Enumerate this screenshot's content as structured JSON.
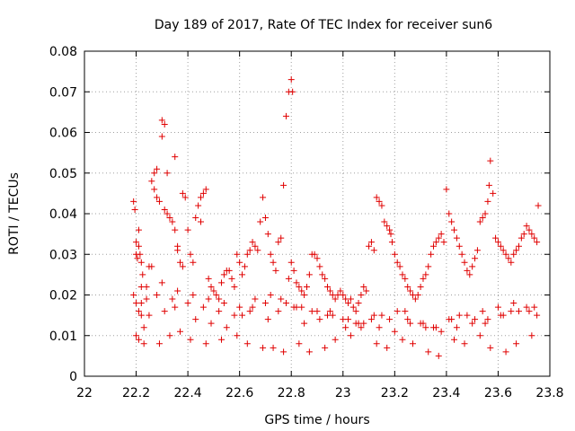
{
  "chart_data": {
    "type": "scatter",
    "title": "Day 189 of 2017, Rate Of TEC Index for receiver sun6",
    "xlabel": "GPS time / hours",
    "ylabel": "ROTI / TECUs",
    "xlim": [
      22,
      23.8
    ],
    "ylim": [
      0,
      0.08
    ],
    "grid": true,
    "marker": "+",
    "marker_color": "#e00000",
    "x_ticks": [
      "22",
      "22.2",
      "22.4",
      "22.6",
      "22.8",
      "23",
      "23.2",
      "23.4",
      "23.6",
      "23.8"
    ],
    "y_ticks": [
      "0",
      "0.01",
      "0.02",
      "0.03",
      "0.04",
      "0.05",
      "0.06",
      "0.07",
      "0.08"
    ],
    "series": [
      {
        "name": "ROTI",
        "x": [
          22.19,
          22.195,
          22.2,
          22.2,
          22.205,
          22.21,
          22.21,
          22.215,
          22.22,
          22.225,
          22.19,
          22.2,
          22.21,
          22.22,
          22.2,
          22.21,
          22.23,
          22.22,
          22.24,
          22.25,
          22.26,
          22.26,
          22.27,
          22.28,
          22.27,
          22.28,
          22.29,
          22.3,
          22.3,
          22.31,
          22.31,
          22.32,
          22.32,
          22.33,
          22.34,
          22.35,
          22.35,
          22.36,
          22.36,
          22.37,
          22.38,
          22.38,
          22.39,
          22.4,
          22.41,
          22.42,
          22.43,
          22.44,
          22.45,
          22.45,
          22.46,
          22.47,
          22.48,
          22.49,
          22.5,
          22.51,
          22.52,
          22.53,
          22.54,
          22.55,
          22.56,
          22.57,
          22.58,
          22.59,
          22.6,
          22.61,
          22.62,
          22.63,
          22.64,
          22.65,
          22.66,
          22.67,
          22.68,
          22.69,
          22.7,
          22.71,
          22.72,
          22.73,
          22.74,
          22.75,
          22.76,
          22.77,
          22.78,
          22.79,
          22.8,
          22.805,
          22.81,
          22.8,
          22.79,
          22.82,
          22.83,
          22.84,
          22.85,
          22.86,
          22.87,
          22.88,
          22.89,
          22.9,
          22.91,
          22.92,
          22.93,
          22.94,
          22.95,
          22.96,
          22.97,
          22.98,
          22.99,
          23.0,
          23.01,
          23.02,
          23.03,
          23.04,
          23.05,
          23.06,
          23.07,
          23.08,
          23.09,
          23.1,
          23.11,
          23.12,
          23.13,
          23.14,
          23.15,
          23.16,
          23.17,
          23.18,
          23.185,
          23.19,
          23.2,
          23.21,
          23.22,
          23.23,
          23.24,
          23.25,
          23.26,
          23.27,
          23.28,
          23.29,
          23.3,
          23.31,
          23.32,
          23.33,
          23.34,
          23.35,
          23.36,
          23.37,
          23.38,
          23.39,
          23.4,
          23.41,
          23.42,
          23.43,
          23.44,
          23.45,
          23.46,
          23.47,
          23.48,
          23.49,
          23.5,
          23.51,
          23.52,
          23.53,
          23.54,
          23.55,
          23.56,
          23.565,
          23.57,
          23.58,
          23.59,
          23.6,
          23.61,
          23.62,
          23.63,
          23.64,
          23.65,
          23.66,
          23.67,
          23.68,
          23.69,
          23.7,
          23.71,
          23.72,
          23.73,
          23.74,
          23.75,
          23.755,
          22.23,
          22.29,
          22.33,
          22.37,
          22.41,
          22.47,
          22.53,
          22.59,
          22.63,
          22.69,
          22.73,
          22.77,
          22.83,
          22.87,
          22.93,
          22.97,
          23.03,
          23.07,
          23.13,
          23.17,
          23.23,
          23.27,
          23.33,
          23.37,
          23.43,
          23.47,
          23.53,
          23.57,
          23.63,
          23.67,
          23.73,
          22.25,
          22.31,
          22.35,
          22.43,
          22.49,
          22.55,
          22.61,
          22.65,
          22.71,
          22.75,
          22.81,
          22.85,
          22.91,
          22.95,
          23.01,
          23.05,
          23.11,
          23.15,
          23.21,
          23.25,
          23.31,
          23.35,
          23.41,
          23.45,
          23.51,
          23.55,
          23.61,
          23.65,
          23.71,
          23.75,
          22.22,
          22.28,
          22.34,
          22.4,
          22.46,
          22.52,
          22.58,
          22.64,
          22.7,
          22.76,
          22.82,
          22.88,
          22.94,
          23.0,
          23.06,
          23.12,
          23.18,
          23.24,
          23.3,
          23.36,
          23.42,
          23.48,
          23.54,
          23.6,
          23.66,
          23.72,
          22.24,
          22.3,
          22.36,
          22.42,
          22.48,
          22.54,
          22.6,
          22.66,
          22.72,
          22.78,
          22.84,
          22.9,
          22.96,
          23.02,
          23.08,
          23.14,
          23.2,
          23.26,
          23.32,
          23.38,
          23.44,
          23.5,
          23.56,
          23.62,
          23.68,
          23.74
        ],
        "y": [
          0.043,
          0.041,
          0.033,
          0.03,
          0.029,
          0.036,
          0.032,
          0.03,
          0.028,
          0.025,
          0.02,
          0.018,
          0.016,
          0.015,
          0.01,
          0.009,
          0.008,
          0.022,
          0.019,
          0.027,
          0.027,
          0.048,
          0.05,
          0.051,
          0.046,
          0.044,
          0.043,
          0.059,
          0.063,
          0.062,
          0.041,
          0.04,
          0.05,
          0.039,
          0.038,
          0.054,
          0.036,
          0.032,
          0.031,
          0.028,
          0.027,
          0.045,
          0.044,
          0.036,
          0.03,
          0.028,
          0.039,
          0.042,
          0.044,
          0.038,
          0.045,
          0.046,
          0.024,
          0.022,
          0.021,
          0.02,
          0.019,
          0.023,
          0.025,
          0.026,
          0.026,
          0.024,
          0.022,
          0.03,
          0.028,
          0.025,
          0.027,
          0.03,
          0.031,
          0.033,
          0.032,
          0.031,
          0.038,
          0.044,
          0.039,
          0.035,
          0.03,
          0.028,
          0.026,
          0.033,
          0.034,
          0.047,
          0.064,
          0.07,
          0.073,
          0.07,
          0.026,
          0.028,
          0.024,
          0.023,
          0.022,
          0.021,
          0.02,
          0.022,
          0.025,
          0.03,
          0.03,
          0.029,
          0.027,
          0.025,
          0.024,
          0.022,
          0.021,
          0.02,
          0.019,
          0.02,
          0.021,
          0.02,
          0.019,
          0.018,
          0.019,
          0.017,
          0.016,
          0.018,
          0.02,
          0.022,
          0.021,
          0.032,
          0.033,
          0.031,
          0.044,
          0.043,
          0.042,
          0.038,
          0.037,
          0.036,
          0.035,
          0.033,
          0.03,
          0.028,
          0.027,
          0.025,
          0.024,
          0.022,
          0.021,
          0.02,
          0.019,
          0.02,
          0.022,
          0.024,
          0.025,
          0.027,
          0.03,
          0.032,
          0.033,
          0.034,
          0.035,
          0.033,
          0.046,
          0.04,
          0.038,
          0.036,
          0.034,
          0.032,
          0.03,
          0.028,
          0.026,
          0.025,
          0.027,
          0.029,
          0.031,
          0.038,
          0.039,
          0.04,
          0.043,
          0.047,
          0.053,
          0.045,
          0.034,
          0.033,
          0.032,
          0.031,
          0.03,
          0.029,
          0.028,
          0.03,
          0.031,
          0.032,
          0.034,
          0.035,
          0.037,
          0.036,
          0.035,
          0.034,
          0.033,
          0.042,
          0.012,
          0.008,
          0.01,
          0.011,
          0.009,
          0.008,
          0.009,
          0.01,
          0.008,
          0.007,
          0.007,
          0.006,
          0.008,
          0.006,
          0.007,
          0.009,
          0.01,
          0.012,
          0.008,
          0.007,
          0.009,
          0.008,
          0.006,
          0.005,
          0.009,
          0.008,
          0.01,
          0.007,
          0.006,
          0.008,
          0.01,
          0.015,
          0.016,
          0.017,
          0.014,
          0.013,
          0.012,
          0.015,
          0.017,
          0.014,
          0.016,
          0.017,
          0.013,
          0.014,
          0.016,
          0.012,
          0.013,
          0.014,
          0.015,
          0.016,
          0.014,
          0.013,
          0.012,
          0.014,
          0.015,
          0.014,
          0.013,
          0.015,
          0.016,
          0.017,
          0.015,
          0.018,
          0.02,
          0.019,
          0.018,
          0.017,
          0.016,
          0.015,
          0.016,
          0.018,
          0.019,
          0.017,
          0.016,
          0.015,
          0.014,
          0.013,
          0.015,
          0.014,
          0.016,
          0.013,
          0.012,
          0.014,
          0.015,
          0.016,
          0.017,
          0.018,
          0.016,
          0.022,
          0.023,
          0.021,
          0.02,
          0.019,
          0.018,
          0.017,
          0.019,
          0.02,
          0.018,
          0.017,
          0.016,
          0.015,
          0.014,
          0.013,
          0.012,
          0.011,
          0.013,
          0.012,
          0.011,
          0.012,
          0.013,
          0.014,
          0.015,
          0.016,
          0.017
        ]
      }
    ]
  }
}
